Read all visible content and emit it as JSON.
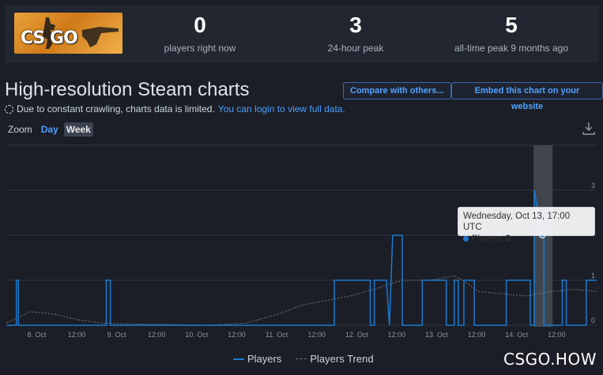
{
  "header": {
    "logo_text": "CS GO",
    "stats": [
      {
        "value": "0",
        "label": "players right now"
      },
      {
        "value": "3",
        "label": "24-hour peak"
      },
      {
        "value": "5",
        "label": "all-time peak 9 months ago"
      }
    ]
  },
  "chart_section": {
    "title": "High-resolution Steam charts",
    "compare_button": "Compare with others...",
    "embed_button": "Embed this chart on your website",
    "notice_text": "Due to constant crawling, charts data is limited.",
    "login_link": "You can login to view full data.",
    "zoom_label": "Zoom",
    "zoom_options": [
      "Day",
      "Week"
    ],
    "zoom_selected": "Week",
    "download_icon": "download-icon"
  },
  "tooltip": {
    "date": "Wednesday, Oct 13, 17:00 UTC",
    "series_label": "Players:",
    "value": "2"
  },
  "legend": {
    "players": "Players",
    "trend": "Players Trend"
  },
  "watermark": "CSGO.HOW",
  "colors": {
    "background": "#1b1e26",
    "players_line": "#1a7ad1",
    "trend_line": "#777777",
    "accent": "#4c9eff"
  },
  "chart_data": {
    "type": "line",
    "x_tick_labels": [
      "8. Oct",
      "12:00",
      "9. Oct",
      "12:00",
      "10. Oct",
      "12:00",
      "11. Oct",
      "12:00",
      "12. Oct",
      "12:00",
      "13. Oct",
      "12:00",
      "14. Oct",
      "12:00"
    ],
    "y_tick_labels": [
      "0",
      "1",
      "3"
    ],
    "ylim": [
      0,
      4
    ],
    "grid": true,
    "legend_position": "bottom-center",
    "highlight_point": {
      "x": "Oct 13, 17:00",
      "y": 2
    },
    "series": [
      {
        "name": "Players",
        "points": [
          [
            0.0,
            0
          ],
          [
            0.125,
            0
          ],
          [
            0.125,
            1
          ],
          [
            0.15,
            1
          ],
          [
            0.15,
            0
          ],
          [
            1.25,
            0
          ],
          [
            1.25,
            1
          ],
          [
            1.3,
            1
          ],
          [
            1.3,
            0
          ],
          [
            4.1,
            0
          ],
          [
            4.1,
            1
          ],
          [
            4.55,
            1
          ],
          [
            4.55,
            0
          ],
          [
            4.6,
            0
          ],
          [
            4.6,
            1
          ],
          [
            4.75,
            1
          ],
          [
            4.79,
            0
          ],
          [
            4.83,
            2
          ],
          [
            4.95,
            2
          ],
          [
            4.95,
            0
          ],
          [
            5.2,
            0
          ],
          [
            5.2,
            1
          ],
          [
            5.5,
            1
          ],
          [
            5.5,
            0
          ],
          [
            5.6,
            0
          ],
          [
            5.6,
            1
          ],
          [
            5.65,
            1
          ],
          [
            5.65,
            0
          ],
          [
            5.72,
            0
          ],
          [
            5.72,
            1
          ],
          [
            5.85,
            1
          ],
          [
            5.85,
            0
          ],
          [
            6.25,
            0
          ],
          [
            6.25,
            1
          ],
          [
            6.55,
            1
          ],
          [
            6.55,
            0
          ],
          [
            6.6,
            0
          ],
          [
            6.6,
            3
          ],
          [
            6.7,
            2
          ],
          [
            6.72,
            2
          ],
          [
            6.72,
            0
          ],
          [
            6.95,
            0
          ],
          [
            6.95,
            1
          ],
          [
            7.0,
            1
          ],
          [
            7.0,
            0
          ],
          [
            7.25,
            0
          ],
          [
            7.25,
            1
          ],
          [
            7.38,
            1
          ]
        ]
      },
      {
        "name": "Players Trend",
        "points": [
          [
            0.0,
            0.05
          ],
          [
            0.3,
            0.3
          ],
          [
            0.6,
            0.25
          ],
          [
            0.9,
            0.12
          ],
          [
            1.2,
            0.05
          ],
          [
            1.5,
            0.03
          ],
          [
            2.0,
            0.02
          ],
          [
            2.5,
            0.0
          ],
          [
            3.0,
            0.05
          ],
          [
            3.4,
            0.25
          ],
          [
            3.7,
            0.45
          ],
          [
            4.0,
            0.55
          ],
          [
            4.3,
            0.65
          ],
          [
            4.6,
            0.8
          ],
          [
            4.85,
            0.95
          ],
          [
            5.0,
            1.0
          ],
          [
            5.3,
            1.0
          ],
          [
            5.6,
            1.1
          ],
          [
            5.75,
            0.95
          ],
          [
            5.9,
            0.75
          ],
          [
            6.2,
            0.7
          ],
          [
            6.5,
            0.65
          ],
          [
            6.8,
            0.75
          ],
          [
            7.1,
            0.8
          ],
          [
            7.38,
            0.75
          ]
        ]
      }
    ]
  }
}
